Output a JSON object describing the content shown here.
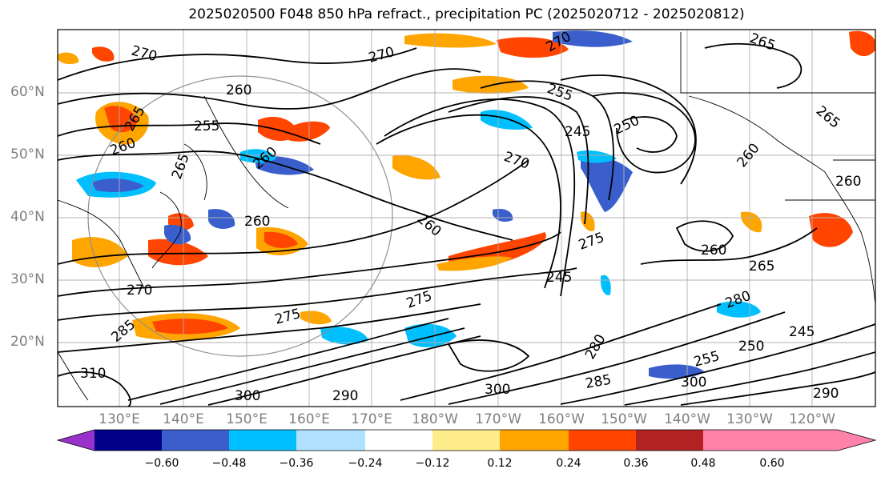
{
  "title": "2025020500 F048 850 hPa refract., precipitation PC (2025020712 - 2025020812)",
  "lat_labels": [
    "60°N",
    "50°N",
    "40°N",
    "30°N",
    "20°N"
  ],
  "lon_labels": [
    "130°E",
    "140°E",
    "150°E",
    "160°E",
    "170°E",
    "180°W",
    "170°W",
    "160°W",
    "150°W",
    "140°W",
    "130°W",
    "120°W"
  ],
  "colorbar": {
    "ticks": [
      "−0.60",
      "−0.48",
      "−0.36",
      "−0.24",
      "−0.12",
      "0.12",
      "0.24",
      "0.36",
      "0.48",
      "0.60"
    ],
    "colors": [
      "#9932cc",
      "#00008b",
      "#3a5fcd",
      "#00bfff",
      "#b0e2ff",
      "#ffffff",
      "#ffec8b",
      "#ffa500",
      "#ff4500",
      "#b22222",
      "#ff82ab"
    ]
  },
  "contour_labels": [
    "270",
    "260",
    "255",
    "265",
    "260",
    "265",
    "260",
    "270",
    "270",
    "260",
    "275",
    "285",
    "310",
    "290",
    "270",
    "260",
    "255",
    "245",
    "250",
    "270",
    "260",
    "275",
    "245",
    "275",
    "280",
    "260",
    "265",
    "280",
    "265",
    "250",
    "255",
    "300",
    "300",
    "285",
    "290",
    "300",
    "260",
    "265",
    "245"
  ]
}
